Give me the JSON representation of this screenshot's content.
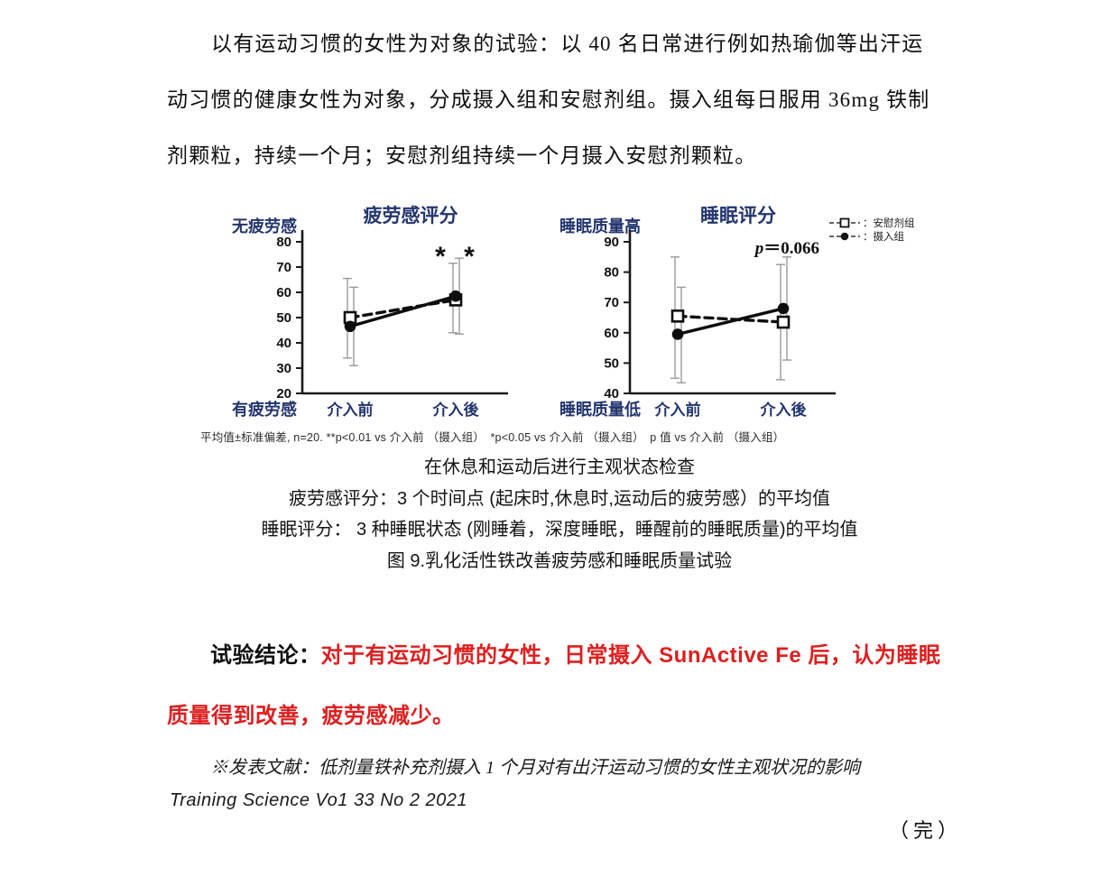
{
  "intro": {
    "lines": [
      "以有运动习惯的女性为对象的试验：以 40 名日常进行例如热瑜伽等出汗运",
      "动习惯的健康女性为对象，分成摄入组和安慰剂组。摄入组每日服用 36mg 铁制",
      "剂颗粒，持续一个月；安慰剂组持续一个月摄入安慰剂颗粒。"
    ]
  },
  "figure": {
    "legend": {
      "separator": "：",
      "items": [
        {
          "marker": "square-open-dashed",
          "label": "安慰剂组"
        },
        {
          "marker": "circle-filled-dashed",
          "label": "摄入组"
        }
      ]
    },
    "footnote": "平均值±标准偏差, n=20. **p<0.01 vs 介入前 （摄入组）　*p<0.05 vs 介入前 （摄入组）　p 值 vs 介入前 （摄入组）",
    "caption_lines": [
      "在休息和运动后进行主观状态检查",
      "疲劳感评分：3 个时间点 (起床时,休息时,运动后的疲劳感）的平均值",
      "睡眠评分： 3 种睡眠状态 (刚睡着，深度睡眠，睡醒前的睡眠质量)的平均值",
      "图 9.乳化活性铁改善疲劳感和睡眠质量试验"
    ]
  },
  "chart_data": [
    {
      "type": "line",
      "title": "疲劳感评分",
      "y_top_label": "无疲劳感",
      "y_bottom_label": "有疲劳感",
      "categories": [
        "介入前",
        "介入後"
      ],
      "ylim": [
        20,
        80
      ],
      "ytick_step": 10,
      "annotation": {
        "text": "* *",
        "style": "stars"
      },
      "series": [
        {
          "name": "安慰剂组",
          "marker": "square-open",
          "line": "dashed",
          "values": [
            50,
            57
          ],
          "err_low": [
            34,
            44
          ],
          "err_high": [
            65.5,
            71.5
          ]
        },
        {
          "name": "摄入组",
          "marker": "circle-filled",
          "line": "solid",
          "values": [
            46.5,
            58.5
          ],
          "err_low": [
            31,
            43.5
          ],
          "err_high": [
            62,
            73.5
          ]
        }
      ]
    },
    {
      "type": "line",
      "title": "睡眠评分",
      "y_top_label": "睡眠质量高",
      "y_bottom_label": "睡眠质量低",
      "categories": [
        "介入前",
        "介入後"
      ],
      "ylim": [
        40,
        90
      ],
      "ytick_step": 10,
      "annotation": {
        "text": "p＝0.066",
        "style": "p"
      },
      "series": [
        {
          "name": "安慰剂组",
          "marker": "square-open",
          "line": "dashed",
          "values": [
            65.5,
            63.5
          ],
          "err_low": [
            45,
            44.5
          ],
          "err_high": [
            85,
            82.5
          ]
        },
        {
          "name": "摄入组",
          "marker": "circle-filled",
          "line": "solid",
          "values": [
            59.5,
            68
          ],
          "err_low": [
            43.5,
            51
          ],
          "err_high": [
            75,
            85
          ]
        }
      ]
    }
  ],
  "conclusion": {
    "prefix": "试验结论：",
    "red_line1": "对于有运动习惯的女性，日常摄入 SunActive Fe 后，认为睡眠",
    "red_line2": "质量得到改善，疲劳感减少。"
  },
  "reference": {
    "line1": "※发表文献：低剂量铁补充剂摄入 1 个月对有出汗运动习惯的女性主观状况的影响",
    "line2": "Training Science Vo1 33 No 2 2021"
  },
  "end_mark": "（完）",
  "colors": {
    "navy": "#23356e",
    "red": "#de1f1f",
    "error_bar_gray": "#999999"
  }
}
